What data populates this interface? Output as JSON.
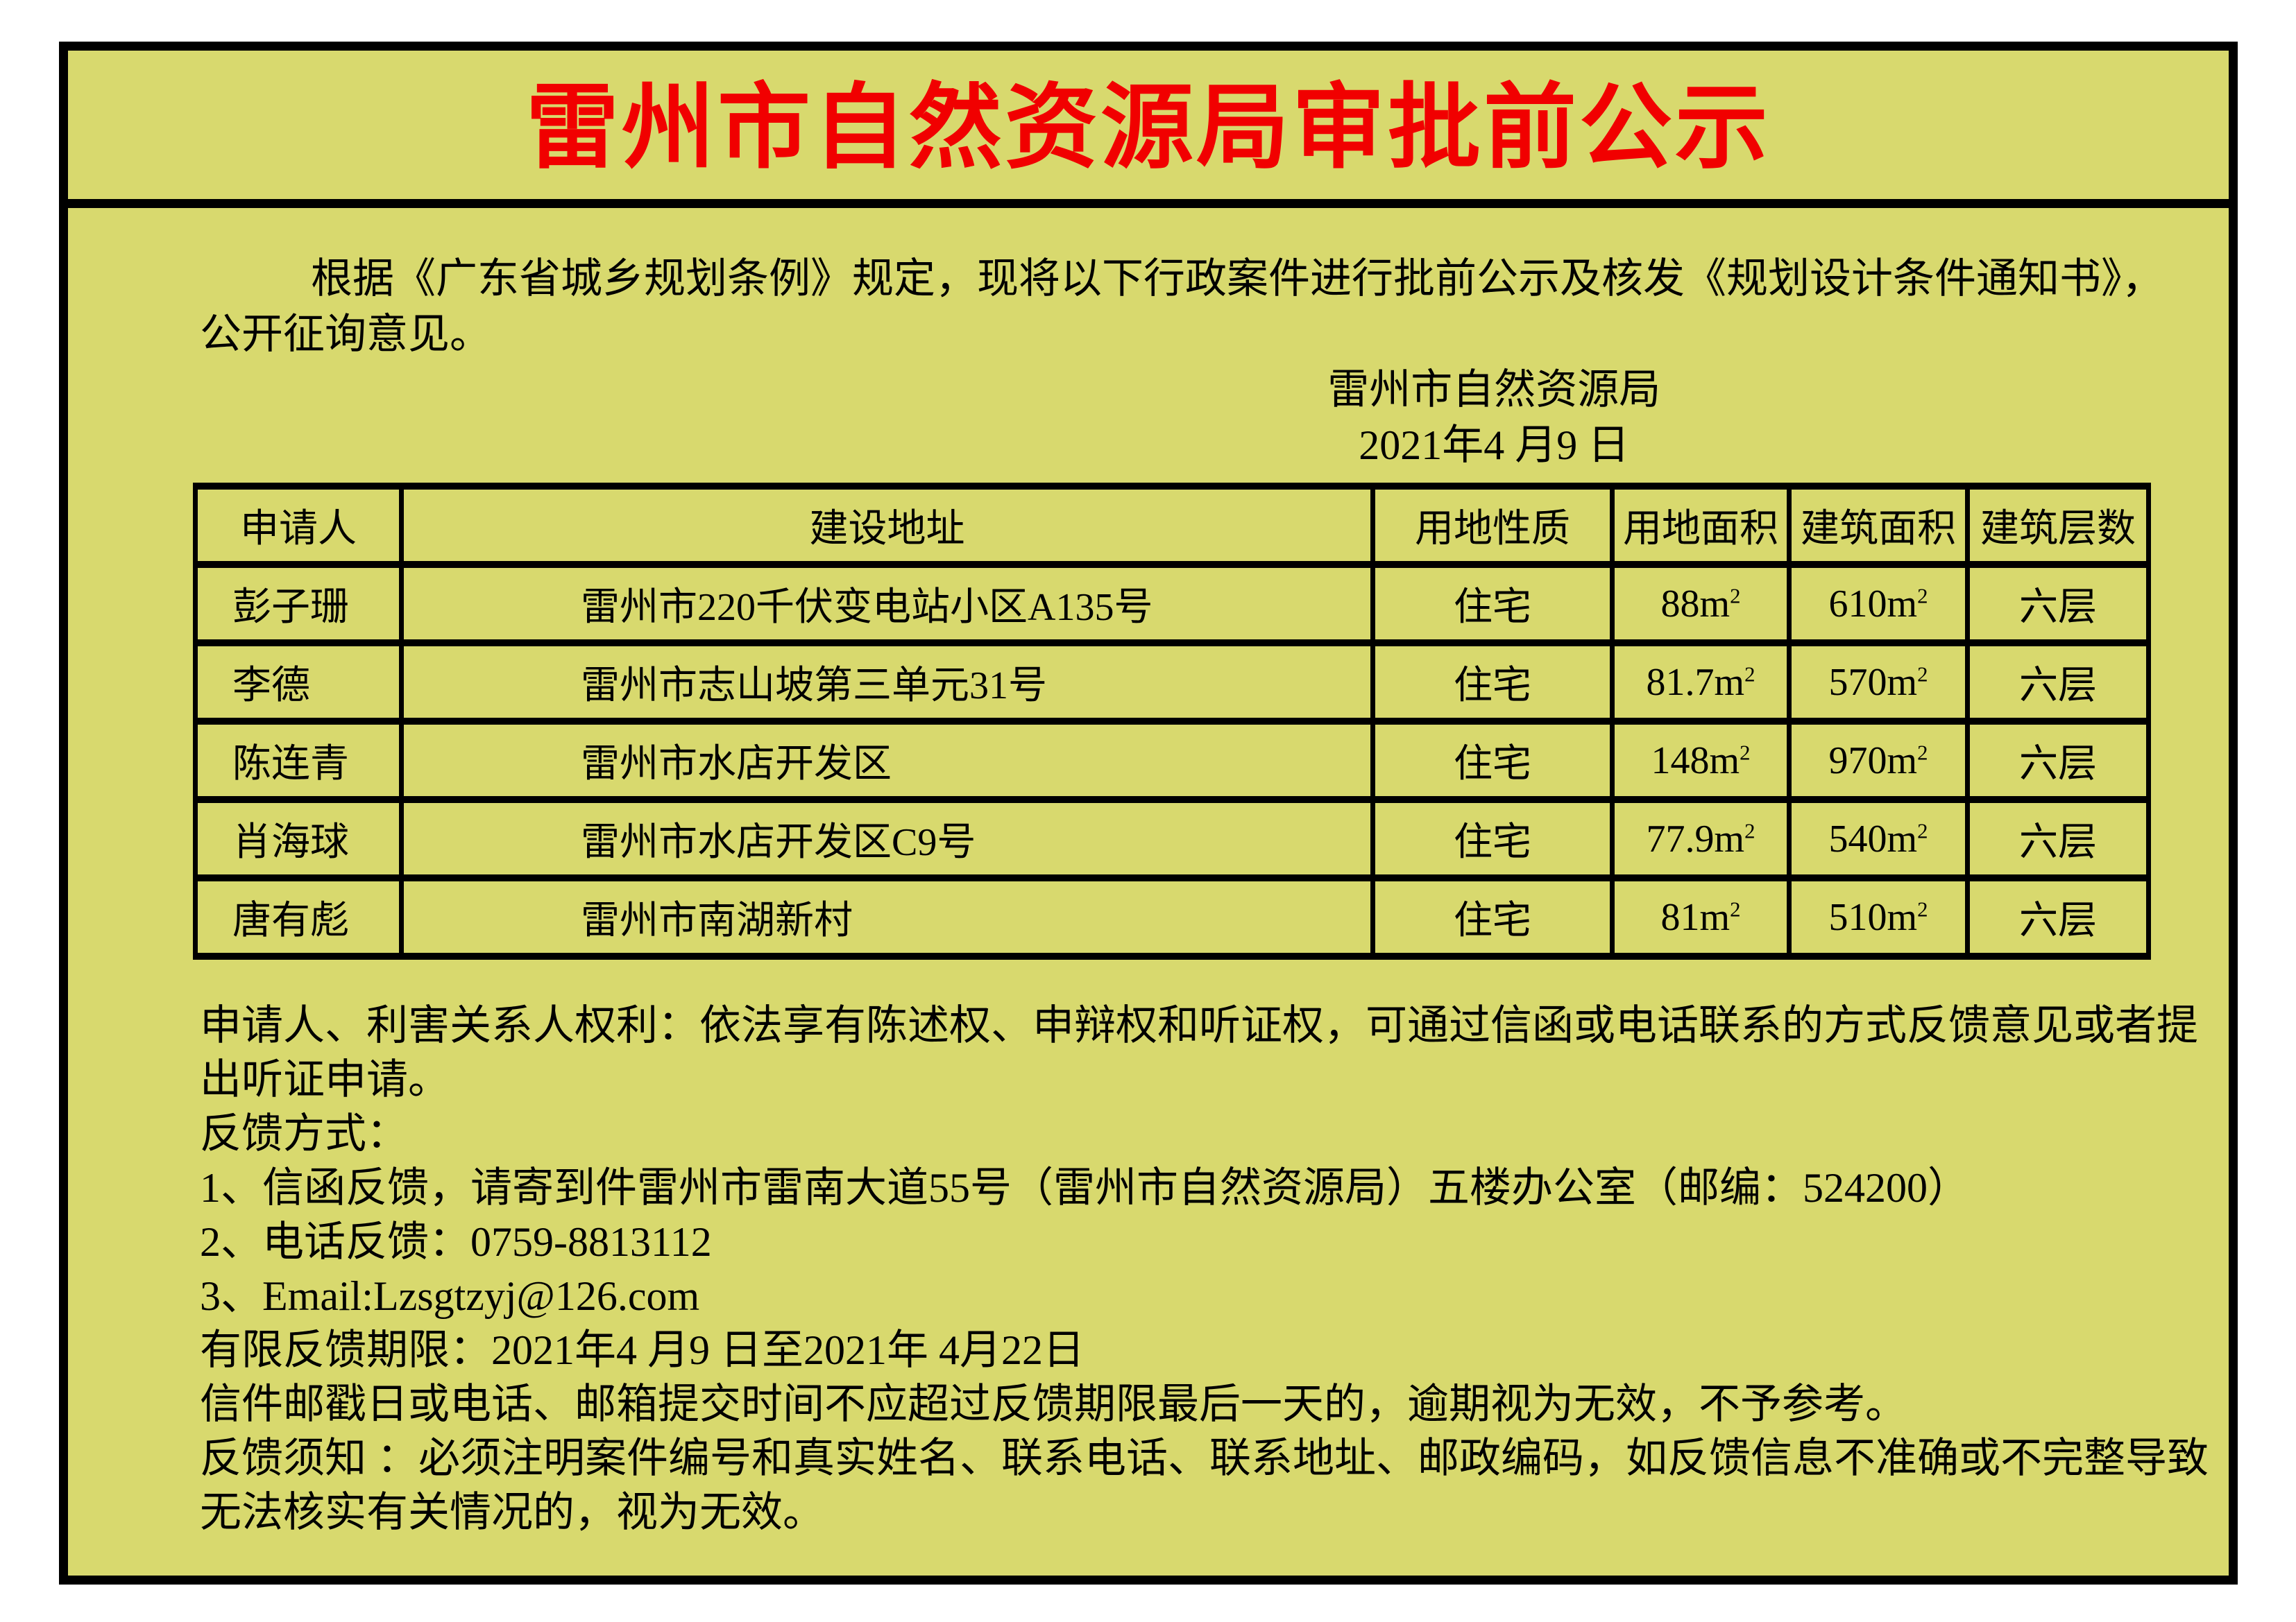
{
  "page": {
    "title": "雷州市自然资源局审批前公示"
  },
  "intro": {
    "lines": [
      "根据《广东省城乡规划条例》规定，现将以下行政案件进行批前公示及核发《规划设计条件通知书》，",
      "公开征询意见。"
    ]
  },
  "signature": {
    "agency": "雷州市自然资源局",
    "date": "2021年4 月9 日"
  },
  "table": {
    "headers": [
      "申请人",
      "建设地址",
      "用地性质",
      "用地面积",
      "建筑面积",
      "建筑层数"
    ],
    "rows": [
      {
        "applicant": "彭子珊",
        "address": "雷州市220千伏变电站小区A135号",
        "land_use": "住宅",
        "land_area": "88m",
        "land_area_sup": "2",
        "floor_area": "610m",
        "floor_area_sup": "2",
        "floors": "六层"
      },
      {
        "applicant": "李德",
        "address": "雷州市志山坡第三单元31号",
        "land_use": "住宅",
        "land_area": "81.7m",
        "land_area_sup": "2",
        "floor_area": "570m",
        "floor_area_sup": "2",
        "floors": "六层"
      },
      {
        "applicant": "陈连青",
        "address": "雷州市水店开发区",
        "land_use": "住宅",
        "land_area": "148m",
        "land_area_sup": "2",
        "floor_area": "970m",
        "floor_area_sup": "2",
        "floors": "六层"
      },
      {
        "applicant": "肖海球",
        "address": "雷州市水店开发区C9号",
        "land_use": "住宅",
        "land_area": "77.9m",
        "land_area_sup": "2",
        "floor_area": "540m",
        "floor_area_sup": "2",
        "floors": "六层"
      },
      {
        "applicant": "唐有彪",
        "address": "雷州市南湖新村",
        "land_use": "住宅",
        "land_area": "81m",
        "land_area_sup": "2",
        "floor_area": "510m",
        "floor_area_sup": "2",
        "floors": "六层"
      }
    ]
  },
  "legal": {
    "lines": [
      "申请人、利害关系人权利：依法享有陈述权、申辩权和听证权，可通过信函或电话联系的方式反馈意见或者提",
      "出听证申请。",
      "反馈方式：",
      "1、信函反馈，请寄到件雷州市雷南大道55号（雷州市自然资源局）五楼办公室（邮编：524200）",
      "2、电话反馈：0759-8813112",
      "3、Email:Lzsgtzyj@126.com",
      "有限反馈期限：2021年4 月9 日至2021年 4月22日",
      "信件邮戳日或电话、邮箱提交时间不应超过反馈期限最后一天的，逾期视为无效，不予参考。",
      "反馈须知 ：必须注明案件编号和真实姓名、联系电话、联系地址、邮政编码，如反馈信息不准确或不完整导致",
      "无法核实有关情况的，视为无效。"
    ]
  },
  "colors": {
    "background": "#d8d96e",
    "title_red": "#f10000",
    "border_black": "#000000",
    "page_white": "#ffffff"
  }
}
